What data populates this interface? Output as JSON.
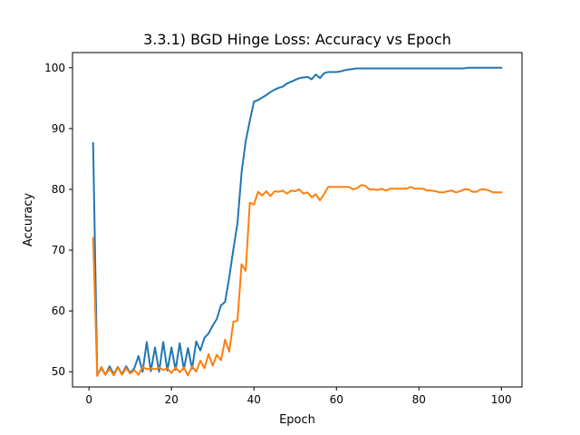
{
  "chart_data": {
    "type": "line",
    "title": "3.3.1) BGD Hinge Loss: Accuracy vs Epoch",
    "xlabel": "Epoch",
    "ylabel": "Accuracy",
    "xlim": [
      -4,
      105
    ],
    "ylim": [
      47.5,
      102.5
    ],
    "xticks": [
      0,
      20,
      40,
      60,
      80,
      100
    ],
    "yticks": [
      50,
      60,
      70,
      80,
      90,
      100
    ],
    "grid": false,
    "legend": "none",
    "x": [
      1,
      2,
      3,
      4,
      5,
      6,
      7,
      8,
      9,
      10,
      11,
      12,
      13,
      14,
      15,
      16,
      17,
      18,
      19,
      20,
      21,
      22,
      23,
      24,
      25,
      26,
      27,
      28,
      29,
      30,
      31,
      32,
      33,
      34,
      35,
      36,
      37,
      38,
      39,
      40,
      41,
      42,
      43,
      44,
      45,
      46,
      47,
      48,
      49,
      50,
      51,
      52,
      53,
      54,
      55,
      56,
      57,
      58,
      59,
      60,
      61,
      62,
      63,
      64,
      65,
      66,
      67,
      68,
      69,
      70,
      71,
      72,
      73,
      74,
      75,
      76,
      77,
      78,
      79,
      80,
      81,
      82,
      83,
      84,
      85,
      86,
      87,
      88,
      89,
      90,
      91,
      92,
      93,
      94,
      95,
      96,
      97,
      98,
      99,
      100
    ],
    "series": [
      {
        "color": "#1f77b4",
        "values": [
          87.6,
          49.5,
          50.6,
          49.5,
          50.9,
          49.6,
          50.8,
          49.6,
          50.9,
          49.8,
          50.6,
          52.6,
          50.0,
          54.9,
          50.1,
          54.0,
          50.0,
          54.9,
          50.2,
          54.0,
          50.3,
          54.7,
          50.4,
          53.9,
          50.5,
          55.0,
          53.5,
          55.6,
          56.3,
          57.6,
          58.7,
          60.9,
          61.5,
          65.5,
          70.1,
          74.4,
          82.8,
          87.9,
          91.3,
          94.4,
          94.7,
          95.1,
          95.5,
          96.0,
          96.4,
          96.7,
          96.9,
          97.4,
          97.7,
          98.0,
          98.3,
          98.4,
          98.5,
          98.1,
          98.9,
          98.3,
          99.1,
          99.3,
          99.3,
          99.3,
          99.4,
          99.6,
          99.7,
          99.8,
          99.9,
          99.9,
          99.9,
          99.9,
          99.9,
          99.9,
          99.9,
          99.9,
          99.9,
          99.9,
          99.9,
          99.9,
          99.9,
          99.9,
          99.9,
          99.9,
          99.9,
          99.9,
          99.9,
          99.9,
          99.9,
          99.9,
          99.9,
          99.9,
          99.9,
          99.9,
          99.9,
          100.0,
          100.0,
          100.0,
          100.0,
          100.0,
          100.0,
          100.0,
          100.0,
          100.0
        ]
      },
      {
        "color": "#ff7f0e",
        "values": [
          72.0,
          49.3,
          50.8,
          49.5,
          50.5,
          49.4,
          50.7,
          49.5,
          50.6,
          49.7,
          50.3,
          49.5,
          50.8,
          50.4,
          50.6,
          50.4,
          50.7,
          50.3,
          50.6,
          49.8,
          50.7,
          49.9,
          50.7,
          49.4,
          50.9,
          50.0,
          51.8,
          50.6,
          52.9,
          51.0,
          52.8,
          51.9,
          55.3,
          53.3,
          58.2,
          58.4,
          67.7,
          66.6,
          77.8,
          77.5,
          79.6,
          79.0,
          79.7,
          78.9,
          79.7,
          79.6,
          79.8,
          79.3,
          79.8,
          79.7,
          80.0,
          79.3,
          79.5,
          78.7,
          79.2,
          78.2,
          79.2,
          80.4,
          80.4,
          80.4,
          80.4,
          80.4,
          80.4,
          80.0,
          80.2,
          80.7,
          80.6,
          80.0,
          80.0,
          79.9,
          80.1,
          79.8,
          80.1,
          80.1,
          80.1,
          80.1,
          80.1,
          80.4,
          80.1,
          80.1,
          80.1,
          79.8,
          79.8,
          79.7,
          79.5,
          79.5,
          79.7,
          79.8,
          79.5,
          79.7,
          80.0,
          80.0,
          79.6,
          79.6,
          80.0,
          80.0,
          79.8,
          79.5,
          79.5,
          79.5
        ]
      }
    ]
  }
}
